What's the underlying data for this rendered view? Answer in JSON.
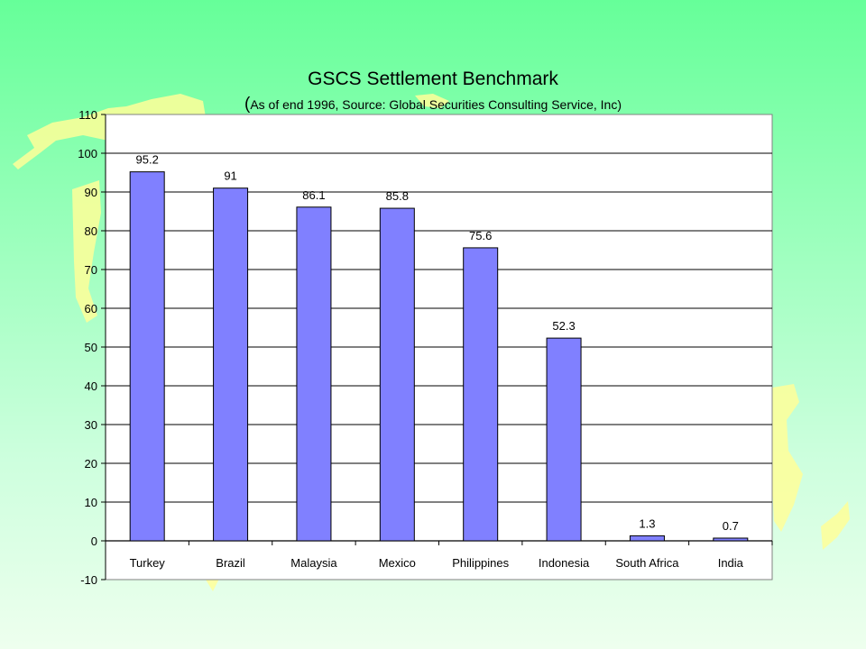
{
  "chart_data": {
    "type": "bar",
    "title": "GSCS Settlement Benchmark",
    "subtitle": "(As of end  1996, Source: Global Securities Consulting  Service, Inc)",
    "categories": [
      "Turkey",
      "Brazil",
      "Malaysia",
      "Mexico",
      "Philippines",
      "Indonesia",
      "South Africa",
      "India"
    ],
    "values": [
      95.2,
      91,
      86.1,
      85.8,
      75.6,
      52.3,
      1.3,
      0.7
    ],
    "data_labels": [
      "95.2",
      "91",
      "86.1",
      "85.8",
      "75.6",
      "52.3",
      "1.3",
      "0.7"
    ],
    "xlabel": "",
    "ylabel": "",
    "ylim": [
      -10,
      110
    ],
    "yticks": [
      -10,
      0,
      10,
      20,
      30,
      40,
      50,
      60,
      70,
      80,
      90,
      100,
      110
    ],
    "grid": true,
    "legend": "none",
    "bar_color": "#8080ff",
    "plot_background": "#ffffff"
  }
}
